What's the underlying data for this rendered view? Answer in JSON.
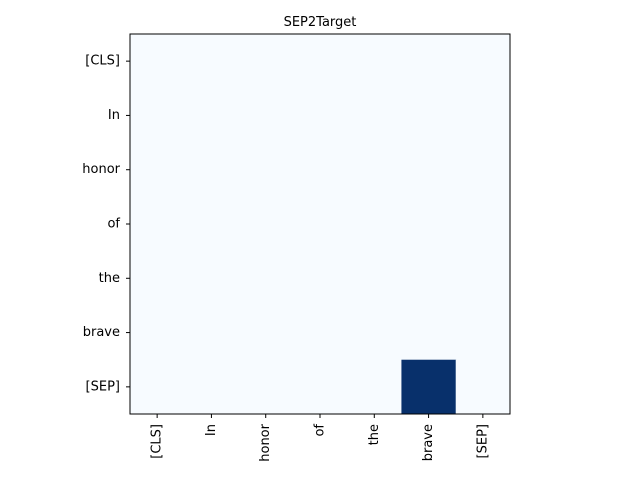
{
  "chart_data": {
    "type": "heatmap",
    "title": "SEP2Target",
    "xlabel": "",
    "ylabel": "",
    "x_categories": [
      "[CLS]",
      "In",
      "honor",
      "of",
      "the",
      "brave",
      "[SEP]"
    ],
    "y_categories": [
      "[CLS]",
      "In",
      "honor",
      "of",
      "the",
      "brave",
      "[SEP]"
    ],
    "values": [
      [
        0,
        0,
        0,
        0,
        0,
        0,
        0
      ],
      [
        0,
        0,
        0,
        0,
        0,
        0,
        0
      ],
      [
        0,
        0,
        0,
        0,
        0,
        0,
        0
      ],
      [
        0,
        0,
        0,
        0,
        0,
        0,
        0
      ],
      [
        0,
        0,
        0,
        0,
        0,
        0,
        0
      ],
      [
        0,
        0,
        0,
        0,
        0,
        0,
        0
      ],
      [
        0,
        0,
        0,
        0,
        0,
        1,
        0
      ]
    ],
    "colormap": "Blues",
    "color_low": "#f7fbff",
    "color_high": "#08306b",
    "vmin": 0,
    "vmax": 1,
    "x_tick_rotation": "vertical",
    "grid": false,
    "legend": "none"
  }
}
